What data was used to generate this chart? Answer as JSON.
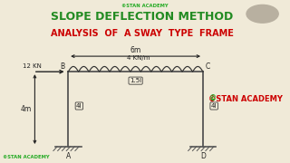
{
  "bg_color": "#f0ead8",
  "title1": "SLOPE DEFLECTION METHOD",
  "title2": "ANALYSIS  OF  A SWAY  TYPE  FRAME",
  "watermark_top": "©STAN ACADEMY",
  "watermark_bottom": "©STAN ACADEMY",
  "watermark_right": "©STAN ACADEMY",
  "title1_color": "#228B22",
  "title2_color": "#cc0000",
  "wm_green": "#22aa22",
  "wm_red": "#cc0000",
  "frame_color": "#555555",
  "label_color": "#222222",
  "span_label": "6m",
  "height_label": "4m",
  "load_label": "4 KN/m",
  "point_load_label": "12 KN",
  "beam_stiffness": "1.5I",
  "col_stiffness_L": "4I",
  "col_stiffness_R": "4I",
  "node_B": "B",
  "node_C": "C",
  "node_A": "A",
  "node_D": "D",
  "xl": 0.235,
  "xr": 0.7,
  "yb": 0.1,
  "yt": 0.56
}
